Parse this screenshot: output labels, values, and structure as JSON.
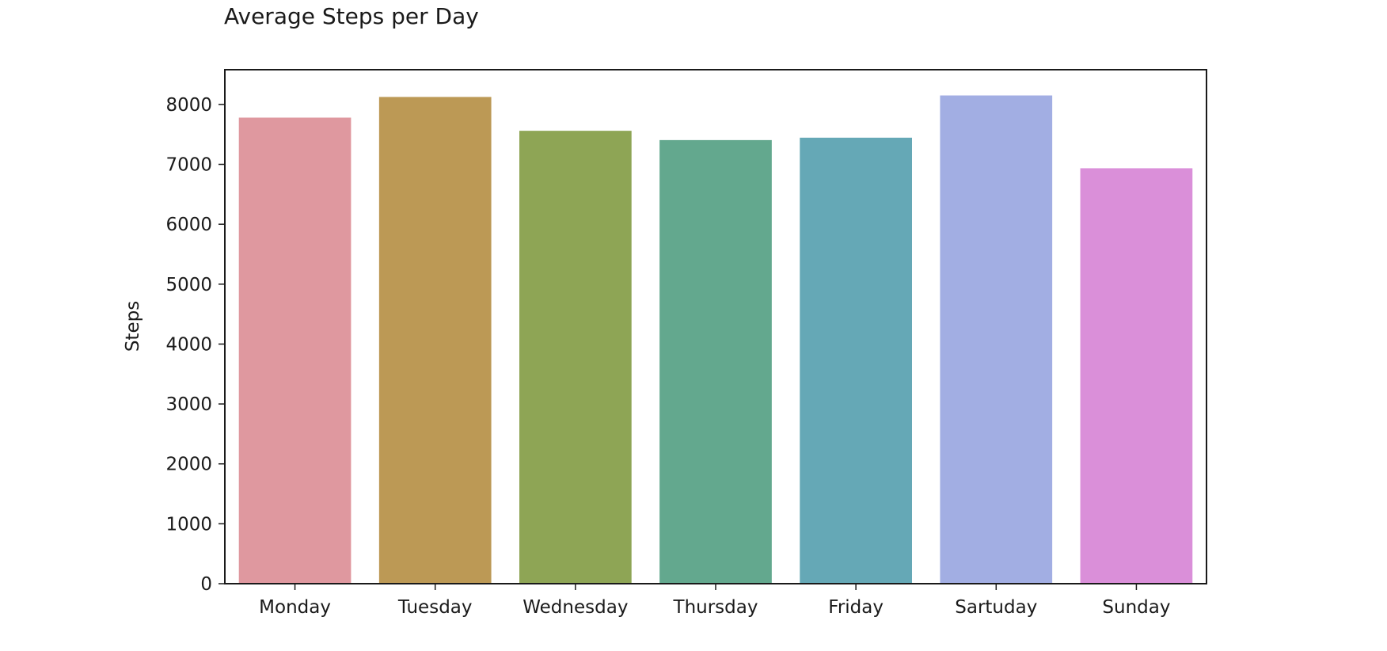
{
  "chart_data": {
    "type": "bar",
    "title": "Average Steps per Day",
    "xlabel": "",
    "ylabel": "Steps",
    "categories": [
      "Monday",
      "Tuesday",
      "Wednesday",
      "Thursday",
      "Friday",
      "Sartuday",
      "Sunday"
    ],
    "values": [
      7780,
      8125,
      7560,
      7405,
      7445,
      8150,
      6935
    ],
    "colors": [
      "#df989f",
      "#bc9955",
      "#8ea555",
      "#63a88e",
      "#65a8b6",
      "#a2aee3",
      "#da8fd9"
    ],
    "ylim": [
      0,
      8580
    ],
    "yticks": [
      0,
      1000,
      2000,
      3000,
      4000,
      5000,
      6000,
      7000,
      8000
    ],
    "grid": false,
    "legend": "none"
  }
}
